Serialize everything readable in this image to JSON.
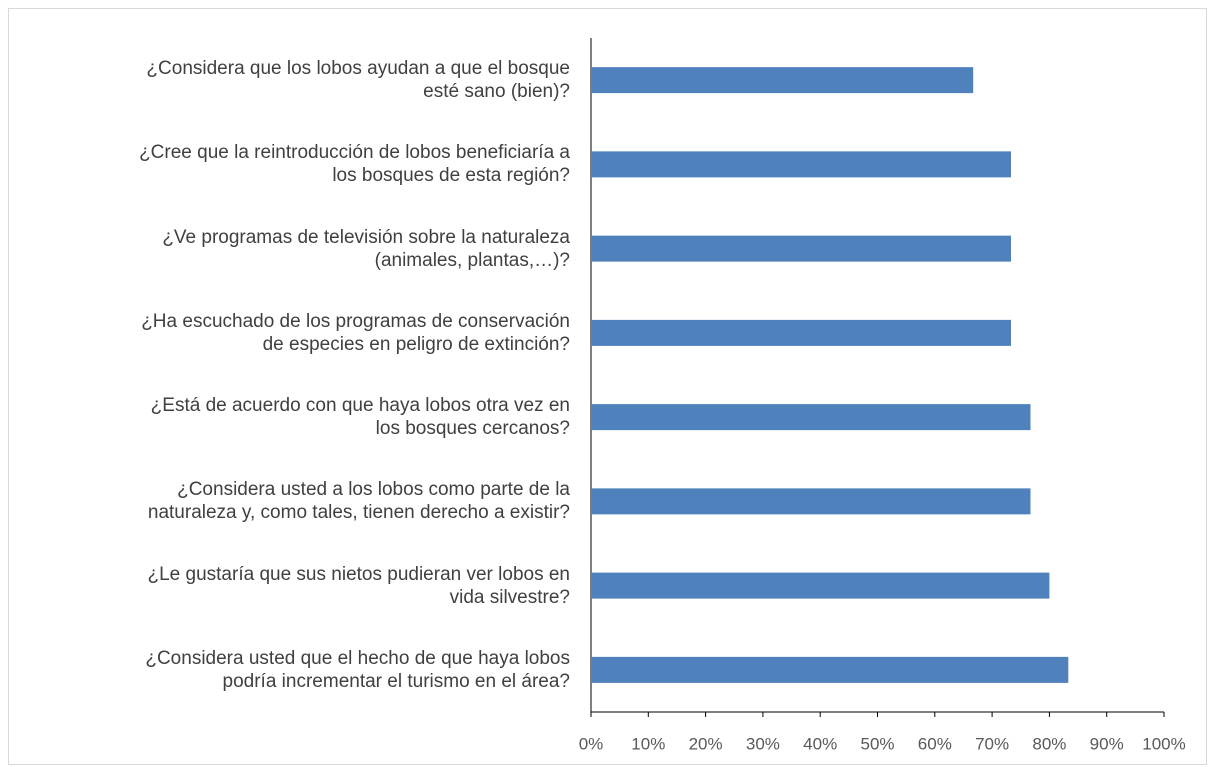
{
  "chart_data": {
    "type": "bar",
    "orientation": "horizontal",
    "categories": [
      "¿Considera que los lobos ayudan a que el bosque\nesté sano (bien)?",
      "¿Cree que la reintroducción de lobos beneficiaría a\nlos bosques de esta región?",
      "¿Ve programas de televisión sobre la naturaleza\n(animales, plantas,…)?",
      "¿Ha escuchado de los programas de conservación\nde especies en peligro de extinción?",
      "¿Está de acuerdo con que haya lobos otra vez en\nlos bosques cercanos?",
      "¿Considera usted a los lobos como parte de la\nnaturaleza y, como tales, tienen derecho a existir?",
      "¿Le gustaría que sus nietos pudieran ver lobos en\nvida silvestre?",
      "¿Considera usted que el hecho de que haya lobos\npodría incrementar el turismo en el área?"
    ],
    "values": [
      66.7,
      73.3,
      73.3,
      73.3,
      76.7,
      76.7,
      80,
      83.3
    ],
    "color": "#4f81bd",
    "xlim": [
      0,
      100
    ],
    "xticks": [
      {
        "value": 0,
        "label": "0%"
      },
      {
        "value": 10,
        "label": "10%"
      },
      {
        "value": 20,
        "label": "20%"
      },
      {
        "value": 30,
        "label": "30%"
      },
      {
        "value": 40,
        "label": "40%"
      },
      {
        "value": 50,
        "label": "50%"
      },
      {
        "value": 60,
        "label": "60%"
      },
      {
        "value": 70,
        "label": "70%"
      },
      {
        "value": 80,
        "label": "80%"
      },
      {
        "value": 90,
        "label": "90%"
      },
      {
        "value": 100,
        "label": "100%"
      }
    ],
    "grid": false
  }
}
